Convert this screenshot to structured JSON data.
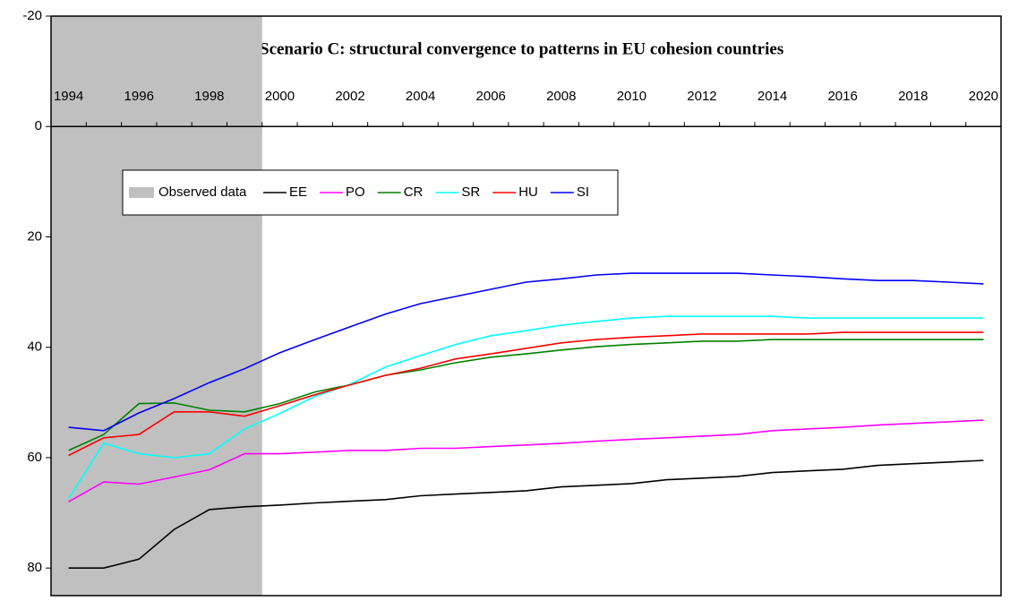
{
  "chart_data": {
    "type": "line",
    "title": "Scenario C: structural convergence to patterns in EU cohesion countries",
    "categories": [
      "1994",
      null,
      "1996",
      null,
      "1998",
      null,
      "2000",
      null,
      "2002",
      null,
      "2004",
      null,
      "2006",
      null,
      "2008",
      null,
      "2010",
      null,
      "2012",
      null,
      "2014",
      null,
      "2016",
      null,
      "2018",
      null,
      "2020"
    ],
    "shade": {
      "name": "Observed data",
      "color": "#c0c0c0",
      "until": "2000"
    },
    "series": [
      {
        "name": "EE",
        "color": "#000000",
        "values": [
          80,
          80,
          78.4,
          73,
          69.4,
          68.9,
          68.6,
          68.2,
          67.9,
          67.6,
          66.9,
          66.6,
          66.3,
          66.0,
          65.3,
          65.0,
          64.7,
          64.0,
          63.7,
          63.4,
          62.7,
          62.4,
          62.1,
          61.4,
          61.1,
          60.8,
          60.5
        ]
      },
      {
        "name": "PO",
        "color": "#ff00ff",
        "values": [
          68,
          64.4,
          64.8,
          63.5,
          62.2,
          59.3,
          59.3,
          59.0,
          58.7,
          58.7,
          58.3,
          58.3,
          58,
          57.7,
          57.4,
          57.0,
          56.7,
          56.4,
          56.1,
          55.8,
          55.1,
          54.8,
          54.5,
          54.1,
          53.8,
          53.5,
          53.2
        ]
      },
      {
        "name": "CR",
        "color": "#008000",
        "values": [
          58.7,
          55.8,
          50.2,
          50.1,
          51.4,
          51.7,
          50.2,
          48.1,
          46.8,
          45.1,
          44.1,
          42.8,
          41.8,
          41.2,
          40.5,
          39.9,
          39.5,
          39.2,
          38.9,
          38.9,
          38.6,
          38.6,
          38.6,
          38.6,
          38.6,
          38.6,
          38.6
        ]
      },
      {
        "name": "SR",
        "color": "#00ffff",
        "values": [
          67.4,
          57.4,
          59.3,
          60,
          59.3,
          54.8,
          52,
          48.9,
          46.7,
          43.6,
          41.5,
          39.5,
          37.9,
          37,
          36,
          35.3,
          34.7,
          34.4,
          34.4,
          34.4,
          34.4,
          34.7,
          34.7,
          34.7,
          34.7,
          34.7,
          34.7
        ]
      },
      {
        "name": "HU",
        "color": "#ff0000",
        "values": [
          59.6,
          56.4,
          55.8,
          51.7,
          51.7,
          52.5,
          50.6,
          48.6,
          46.8,
          45.1,
          43.8,
          42.1,
          41.2,
          40.2,
          39.2,
          38.6,
          38.2,
          37.9,
          37.6,
          37.6,
          37.6,
          37.6,
          37.3,
          37.3,
          37.3,
          37.3,
          37.3
        ]
      },
      {
        "name": "SI",
        "color": "#0000ff",
        "values": [
          54.5,
          55.1,
          51.9,
          49.3,
          46.4,
          43.9,
          41,
          38.6,
          36.3,
          34,
          32.1,
          30.8,
          29.5,
          28.2,
          27.6,
          26.9,
          26.6,
          26.6,
          26.6,
          26.6,
          26.9,
          27.2,
          27.6,
          27.9,
          27.9,
          28.2,
          28.5
        ]
      }
    ],
    "ylim": [
      -20,
      85
    ],
    "yticks": [
      -20,
      0,
      20,
      40,
      60,
      80
    ],
    "y_inverted": true,
    "grid": false
  }
}
